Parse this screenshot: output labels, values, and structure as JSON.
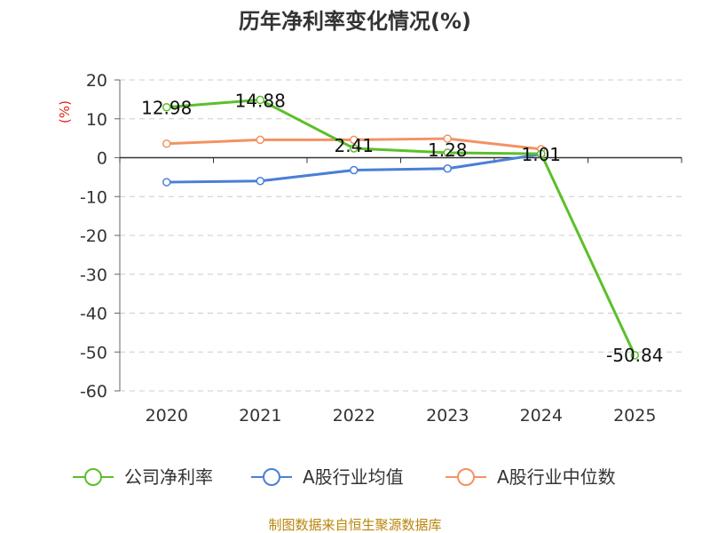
{
  "chart_data": {
    "type": "line",
    "title": "历年净利率变化情况(%)",
    "ylabel": "(%)",
    "xlabel": "",
    "categories": [
      "2020",
      "2021",
      "2022",
      "2023",
      "2024",
      "2025"
    ],
    "ylim": [
      -60,
      20
    ],
    "yticks": [
      20,
      10,
      0,
      -10,
      -20,
      -30,
      -40,
      -50,
      -60
    ],
    "grid": true,
    "legend_position": "bottom",
    "series": [
      {
        "name": "公司净利率",
        "color": "#5cbf2a",
        "values": [
          12.98,
          14.88,
          2.41,
          1.28,
          1.01,
          -50.84
        ],
        "labels": [
          "12.98",
          "14.88",
          "2.41",
          "1.28",
          "1.01",
          "-50.84"
        ]
      },
      {
        "name": "A股行业均值",
        "color": "#4a7fd6",
        "values": [
          -6.3,
          -6.0,
          -3.2,
          -2.8,
          0.9,
          null
        ]
      },
      {
        "name": "A股行业中位数",
        "color": "#f39264",
        "values": [
          3.6,
          4.6,
          4.6,
          4.9,
          2.2,
          null
        ]
      }
    ]
  },
  "footer": {
    "source": "制图数据来自恒生聚源数据库"
  }
}
